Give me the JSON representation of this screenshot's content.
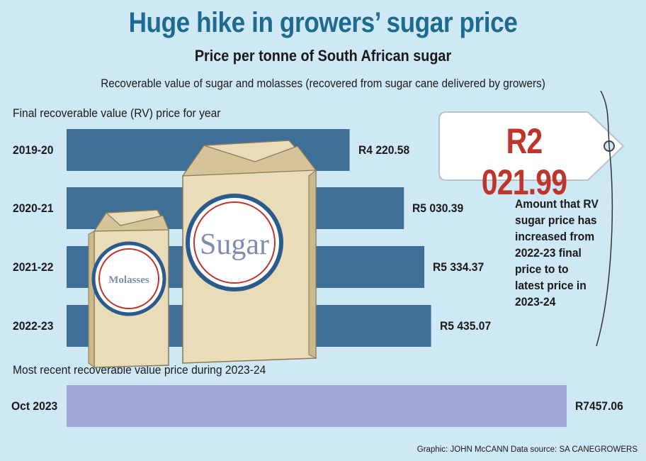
{
  "title": "Huge hike in growers’ sugar price",
  "subtitle": "Price per tonne of South African sugar",
  "description": "Recoverable value of sugar and molasses (recovered from sugar cane delivered by growers)",
  "colors": {
    "background": "#cfe8f6",
    "annual_bar": "#3e6f96",
    "recent_bar": "#a2a8d6",
    "title": "#1f6a8f",
    "tag_price": "#c0352b"
  },
  "chart_data": [
    {
      "type": "bar",
      "orientation": "horizontal",
      "title": "Final recoverable value (RV) price for year",
      "categories": [
        "2019-20",
        "2020-21",
        "2021-22",
        "2022-23"
      ],
      "values": [
        4220.58,
        5030.39,
        5334.37,
        5435.07
      ],
      "value_labels": [
        "R4 220.58",
        "R5 030.39",
        "R5 334.37",
        "R5 435.07"
      ],
      "unit": "R per tonne",
      "xlim": [
        0,
        7457.06
      ],
      "grid": false
    },
    {
      "type": "bar",
      "orientation": "horizontal",
      "title": "Most recent recoverable value price during 2023-24",
      "categories": [
        "Oct 2023"
      ],
      "values": [
        7457.06
      ],
      "value_labels": [
        "R7457.06"
      ],
      "unit": "R per tonne",
      "xlim": [
        0,
        7457.06
      ],
      "grid": false
    }
  ],
  "illustration": {
    "large_bag_label": "Sugar",
    "small_bag_label": "Molasses"
  },
  "price_tag": {
    "value": "R2 021.99",
    "note": "Amount that RV sugar price has increased from 2022-23 final price to to latest price in 2023-24"
  },
  "credit": "Graphic: JOHN McCANN  Data source: SA CANEGROWERS"
}
